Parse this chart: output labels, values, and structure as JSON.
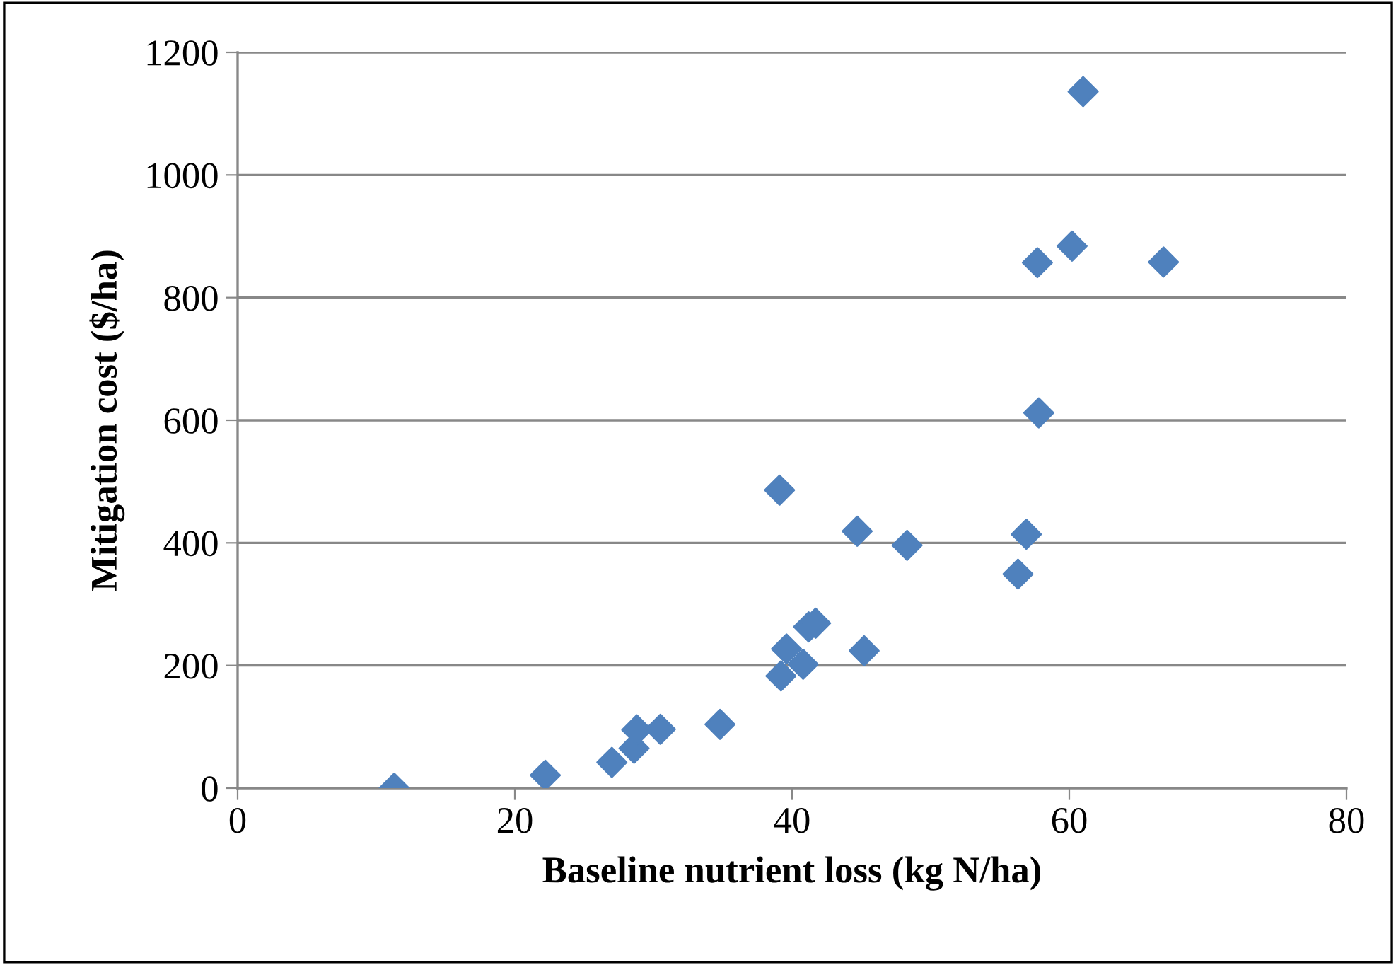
{
  "chart_data": {
    "type": "scatter",
    "xlabel": "Baseline nutrient loss (kg N/ha)",
    "ylabel": "Mitigation cost ($/ha)",
    "x": [
      11.3,
      22.2,
      27.0,
      28.6,
      28.8,
      30.5,
      34.8,
      39.2,
      39.6,
      40.8,
      41.2,
      41.7,
      45.2,
      48.3,
      61.0,
      60.2,
      57.7,
      66.8,
      57.8,
      39.1,
      44.7,
      56.9,
      56.3
    ],
    "series": [
      {
        "color": "#4f81bd",
        "values": [
          0,
          21,
          42,
          65,
          95,
          96,
          104,
          183,
          227,
          202,
          263,
          269,
          224,
          396,
          1136,
          884,
          857,
          858,
          612,
          486,
          419,
          414,
          349
        ]
      }
    ],
    "xlim": [
      0,
      80
    ],
    "xticks": [
      0,
      20,
      40,
      60,
      80
    ],
    "ylim": [
      0,
      1200
    ],
    "yticks": [
      0,
      200,
      400,
      600,
      800,
      1000,
      1200
    ],
    "grid": "y",
    "marker": "diamond",
    "legend": false
  }
}
